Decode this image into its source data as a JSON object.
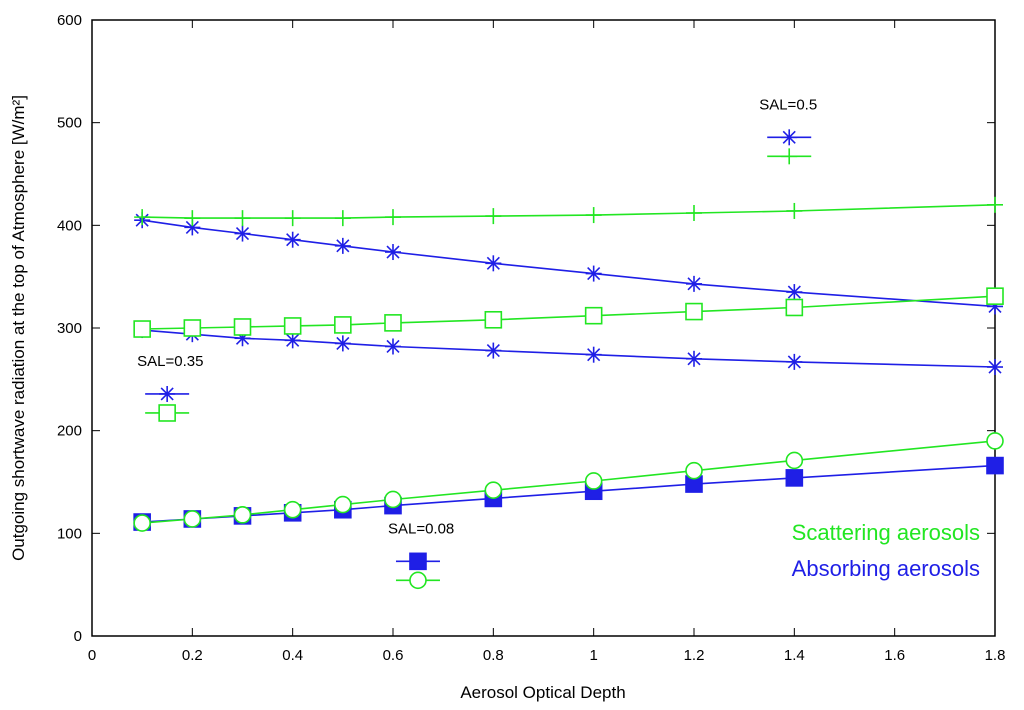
{
  "chart_data": {
    "type": "line",
    "title": "",
    "xlabel": "Aerosol Optical Depth",
    "ylabel": "Outgoing shortwave radiation at the top of Atmosphere  [W/m²]",
    "xlim": [
      0,
      1.8
    ],
    "ylim": [
      0,
      600
    ],
    "xticks": [
      0,
      0.2,
      0.4,
      0.6,
      0.8,
      1,
      1.2,
      1.4,
      1.6,
      1.8
    ],
    "xtick_labels": [
      "0",
      "0.2",
      "0.4",
      "0.6",
      "0.8",
      "1",
      "1.2",
      "1.4",
      "1.6",
      "1.8"
    ],
    "yticks": [
      0,
      100,
      200,
      300,
      400,
      500,
      600
    ],
    "ytick_labels": [
      "0",
      "100",
      "200",
      "300",
      "400",
      "500",
      "600"
    ],
    "x": [
      0.1,
      0.2,
      0.3,
      0.4,
      0.5,
      0.6,
      0.8,
      1.0,
      1.2,
      1.4,
      1.8
    ],
    "grid": false,
    "series": [
      {
        "name": "SAL=0.5 absorbing",
        "group": "Absorbing aerosols",
        "marker": "star",
        "color": "#1f1fe6",
        "values": [
          405,
          398,
          392,
          386,
          380,
          374,
          363,
          353,
          343,
          335,
          321
        ]
      },
      {
        "name": "SAL=0.5 scattering",
        "group": "Scattering aerosols",
        "marker": "plus",
        "color": "#22e622",
        "values": [
          408,
          407,
          407,
          407,
          407,
          408,
          409,
          410,
          412,
          414,
          420
        ]
      },
      {
        "name": "SAL=0.35 absorbing",
        "group": "Absorbing aerosols",
        "marker": "star",
        "color": "#1f1fe6",
        "values": [
          298,
          294,
          290,
          288,
          285,
          282,
          278,
          274,
          270,
          267,
          262
        ]
      },
      {
        "name": "SAL=0.35 scattering",
        "group": "Scattering aerosols",
        "marker": "square",
        "color": "#22e622",
        "values": [
          299,
          300,
          301,
          302,
          303,
          305,
          308,
          312,
          316,
          320,
          331
        ]
      },
      {
        "name": "SAL=0.08 absorbing",
        "group": "Absorbing aerosols",
        "marker": "filled-square",
        "color": "#1f1fe6",
        "values": [
          111,
          114,
          117,
          120,
          123,
          127,
          134,
          141,
          148,
          154,
          166
        ]
      },
      {
        "name": "SAL=0.08 scattering",
        "group": "Scattering aerosols",
        "marker": "circle",
        "color": "#22e622",
        "values": [
          110,
          114,
          118,
          123,
          128,
          133,
          142,
          151,
          161,
          171,
          190
        ]
      }
    ],
    "annotations": [
      {
        "text": "SAL=0.5",
        "x": 1.33,
        "y": 513,
        "markers": [
          "star",
          "plus"
        ]
      },
      {
        "text": "SAL=0.35",
        "x": 0.09,
        "y": 263,
        "markers": [
          "star",
          "square"
        ]
      },
      {
        "text": "SAL=0.08",
        "x": 0.59,
        "y": 100,
        "markers": [
          "filled-square",
          "circle"
        ]
      }
    ],
    "legend": [
      {
        "label": "Scattering aerosols",
        "color": "#22e622"
      },
      {
        "label": "Absorbing aerosols",
        "color": "#1f1fe6"
      }
    ],
    "legend_position": "bottom-right"
  }
}
